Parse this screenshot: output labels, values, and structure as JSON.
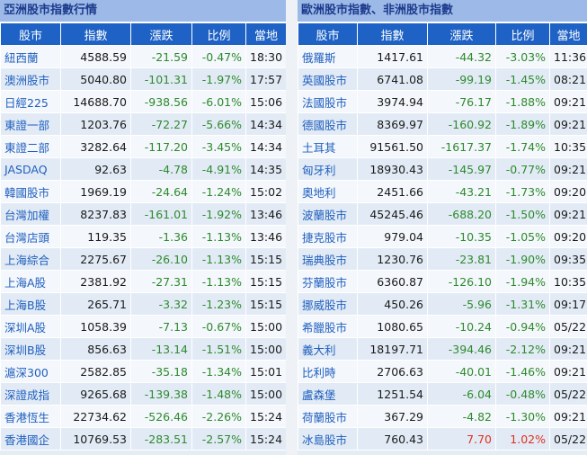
{
  "colors": {
    "title_bg": "#9db9e8",
    "header_bg": "#1e62c5",
    "down": "#2e8a2e",
    "up": "#e0301e",
    "name_link": "#1f5fbf"
  },
  "asia": {
    "title": "亞洲股市指數行情",
    "headers": [
      "股市",
      "指數",
      "漲跌",
      "比例",
      "當地"
    ],
    "rows": [
      {
        "name": "紐西蘭",
        "index": "4588.59",
        "change": "-21.59",
        "pct": "-0.47%",
        "time": "18:30",
        "dir": "down"
      },
      {
        "name": "澳洲股市",
        "index": "5040.80",
        "change": "-101.31",
        "pct": "-1.97%",
        "time": "17:57",
        "dir": "down"
      },
      {
        "name": "日經225",
        "index": "14688.70",
        "change": "-938.56",
        "pct": "-6.01%",
        "time": "15:06",
        "dir": "down"
      },
      {
        "name": "東證一部",
        "index": "1203.76",
        "change": "-72.27",
        "pct": "-5.66%",
        "time": "14:34",
        "dir": "down"
      },
      {
        "name": "東證二部",
        "index": "3282.64",
        "change": "-117.20",
        "pct": "-3.45%",
        "time": "14:34",
        "dir": "down"
      },
      {
        "name": "JASDAQ",
        "index": "92.63",
        "change": "-4.78",
        "pct": "-4.91%",
        "time": "14:35",
        "dir": "down"
      },
      {
        "name": "韓國股市",
        "index": "1969.19",
        "change": "-24.64",
        "pct": "-1.24%",
        "time": "15:02",
        "dir": "down"
      },
      {
        "name": "台灣加權",
        "index": "8237.83",
        "change": "-161.01",
        "pct": "-1.92%",
        "time": "13:46",
        "dir": "down"
      },
      {
        "name": "台灣店頭",
        "index": "119.35",
        "change": "-1.36",
        "pct": "-1.13%",
        "time": "13:46",
        "dir": "down"
      },
      {
        "name": "上海綜合",
        "index": "2275.67",
        "change": "-26.10",
        "pct": "-1.13%",
        "time": "15:15",
        "dir": "down"
      },
      {
        "name": "上海A股",
        "index": "2381.92",
        "change": "-27.31",
        "pct": "-1.13%",
        "time": "15:15",
        "dir": "down"
      },
      {
        "name": "上海B股",
        "index": "265.71",
        "change": "-3.32",
        "pct": "-1.23%",
        "time": "15:15",
        "dir": "down"
      },
      {
        "name": "深圳A股",
        "index": "1058.39",
        "change": "-7.13",
        "pct": "-0.67%",
        "time": "15:00",
        "dir": "down"
      },
      {
        "name": "深圳B股",
        "index": "856.63",
        "change": "-13.14",
        "pct": "-1.51%",
        "time": "15:00",
        "dir": "down"
      },
      {
        "name": "滬深300",
        "index": "2582.85",
        "change": "-35.18",
        "pct": "-1.34%",
        "time": "15:01",
        "dir": "down"
      },
      {
        "name": "深證成指",
        "index": "9265.68",
        "change": "-139.38",
        "pct": "-1.48%",
        "time": "15:00",
        "dir": "down"
      },
      {
        "name": "香港恆生",
        "index": "22734.62",
        "change": "-526.46",
        "pct": "-2.26%",
        "time": "15:24",
        "dir": "down"
      },
      {
        "name": "香港國企",
        "index": "10769.53",
        "change": "-283.51",
        "pct": "-2.57%",
        "time": "15:24",
        "dir": "down"
      }
    ]
  },
  "europe": {
    "title": "歐洲股市指數、非洲股市指數",
    "headers": [
      "股市",
      "指數",
      "漲跌",
      "比例",
      "當地"
    ],
    "rows": [
      {
        "name": "俄羅斯",
        "index": "1417.61",
        "change": "-44.32",
        "pct": "-3.03%",
        "time": "11:36",
        "dir": "down"
      },
      {
        "name": "英國股市",
        "index": "6741.08",
        "change": "-99.19",
        "pct": "-1.45%",
        "time": "08:21",
        "dir": "down"
      },
      {
        "name": "法國股市",
        "index": "3974.94",
        "change": "-76.17",
        "pct": "-1.88%",
        "time": "09:21",
        "dir": "down"
      },
      {
        "name": "德國股市",
        "index": "8369.97",
        "change": "-160.92",
        "pct": "-1.89%",
        "time": "09:21",
        "dir": "down"
      },
      {
        "name": "土耳其",
        "index": "91561.50",
        "change": "-1617.37",
        "pct": "-1.74%",
        "time": "10:35",
        "dir": "down"
      },
      {
        "name": "匈牙利",
        "index": "18930.43",
        "change": "-145.97",
        "pct": "-0.77%",
        "time": "09:21",
        "dir": "down"
      },
      {
        "name": "奧地利",
        "index": "2451.66",
        "change": "-43.21",
        "pct": "-1.73%",
        "time": "09:20",
        "dir": "down"
      },
      {
        "name": "波蘭股市",
        "index": "45245.46",
        "change": "-688.20",
        "pct": "-1.50%",
        "time": "09:21",
        "dir": "down"
      },
      {
        "name": "捷克股市",
        "index": "979.04",
        "change": "-10.35",
        "pct": "-1.05%",
        "time": "09:20",
        "dir": "down"
      },
      {
        "name": "瑞典股市",
        "index": "1230.76",
        "change": "-23.81",
        "pct": "-1.90%",
        "time": "09:35",
        "dir": "down"
      },
      {
        "name": "芬蘭股市",
        "index": "6360.87",
        "change": "-126.10",
        "pct": "-1.94%",
        "time": "10:35",
        "dir": "down"
      },
      {
        "name": "挪威股市",
        "index": "450.26",
        "change": "-5.96",
        "pct": "-1.31%",
        "time": "09:17",
        "dir": "down"
      },
      {
        "name": "希臘股市",
        "index": "1080.65",
        "change": "-10.24",
        "pct": "-0.94%",
        "time": "05/22",
        "dir": "down"
      },
      {
        "name": "義大利",
        "index": "18197.71",
        "change": "-394.46",
        "pct": "-2.12%",
        "time": "09:21",
        "dir": "down"
      },
      {
        "name": "比利時",
        "index": "2706.63",
        "change": "-40.01",
        "pct": "-1.46%",
        "time": "09:21",
        "dir": "down"
      },
      {
        "name": "盧森堡",
        "index": "1251.54",
        "change": "-6.04",
        "pct": "-0.48%",
        "time": "05/22",
        "dir": "down"
      },
      {
        "name": "荷蘭股市",
        "index": "367.29",
        "change": "-4.82",
        "pct": "-1.30%",
        "time": "09:21",
        "dir": "down"
      },
      {
        "name": "冰島股市",
        "index": "760.43",
        "change": "7.70",
        "pct": "1.02%",
        "time": "05/22",
        "dir": "up"
      }
    ]
  }
}
